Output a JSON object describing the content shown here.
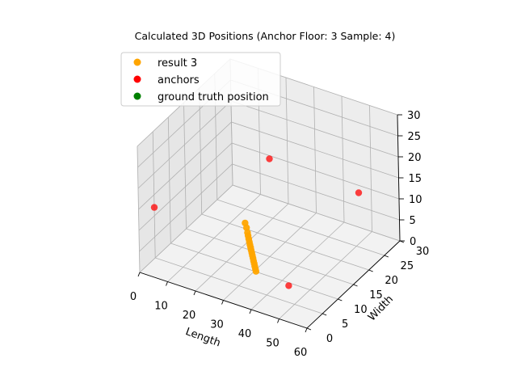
{
  "chart_data": {
    "type": "scatter",
    "projection": "3d",
    "title": "Calculated 3D Positions (Anchor Floor: 3 Sample: 4)",
    "xlabel": "Length",
    "ylabel": "Width",
    "zlabel": "",
    "xlim": [
      0,
      60
    ],
    "ylim": [
      0,
      30
    ],
    "zlim": [
      0,
      30
    ],
    "xticks": [
      "0",
      "10",
      "20",
      "30",
      "40",
      "50",
      "60"
    ],
    "yticks": [
      "0",
      "5",
      "10",
      "15",
      "20",
      "25",
      "30"
    ],
    "zticks": [
      "0",
      "5",
      "10",
      "15",
      "20",
      "25",
      "30"
    ],
    "grid": true,
    "legend_position": "top-left",
    "series": [
      {
        "name": "result 3",
        "color": "#ffa500",
        "points": [
          [
            27,
            10,
            10.8
          ],
          [
            27.5,
            10,
            9.8
          ],
          [
            27.8,
            10,
            8.7
          ],
          [
            28,
            10,
            8.0
          ],
          [
            28.2,
            10,
            7.3
          ],
          [
            28.4,
            10,
            6.6
          ],
          [
            28.6,
            10,
            6.0
          ],
          [
            28.8,
            10,
            5.4
          ],
          [
            29,
            10,
            4.8
          ],
          [
            29.2,
            10,
            4.2
          ],
          [
            29.4,
            10,
            3.6
          ],
          [
            29.6,
            10,
            3.0
          ],
          [
            29.8,
            10,
            2.4
          ],
          [
            30,
            10,
            1.8
          ],
          [
            30.2,
            10,
            1.2
          ],
          [
            30.4,
            10,
            0.6
          ],
          [
            30.6,
            10,
            0.1
          ]
        ]
      },
      {
        "name": "anchors",
        "color": "#ff0000",
        "points": [
          [
            0,
            5,
            12
          ],
          [
            18,
            26,
            13
          ],
          [
            50,
            26,
            12
          ],
          [
            48,
            5,
            4
          ]
        ]
      },
      {
        "name": "ground truth position",
        "color": "#008000",
        "points": []
      }
    ]
  }
}
